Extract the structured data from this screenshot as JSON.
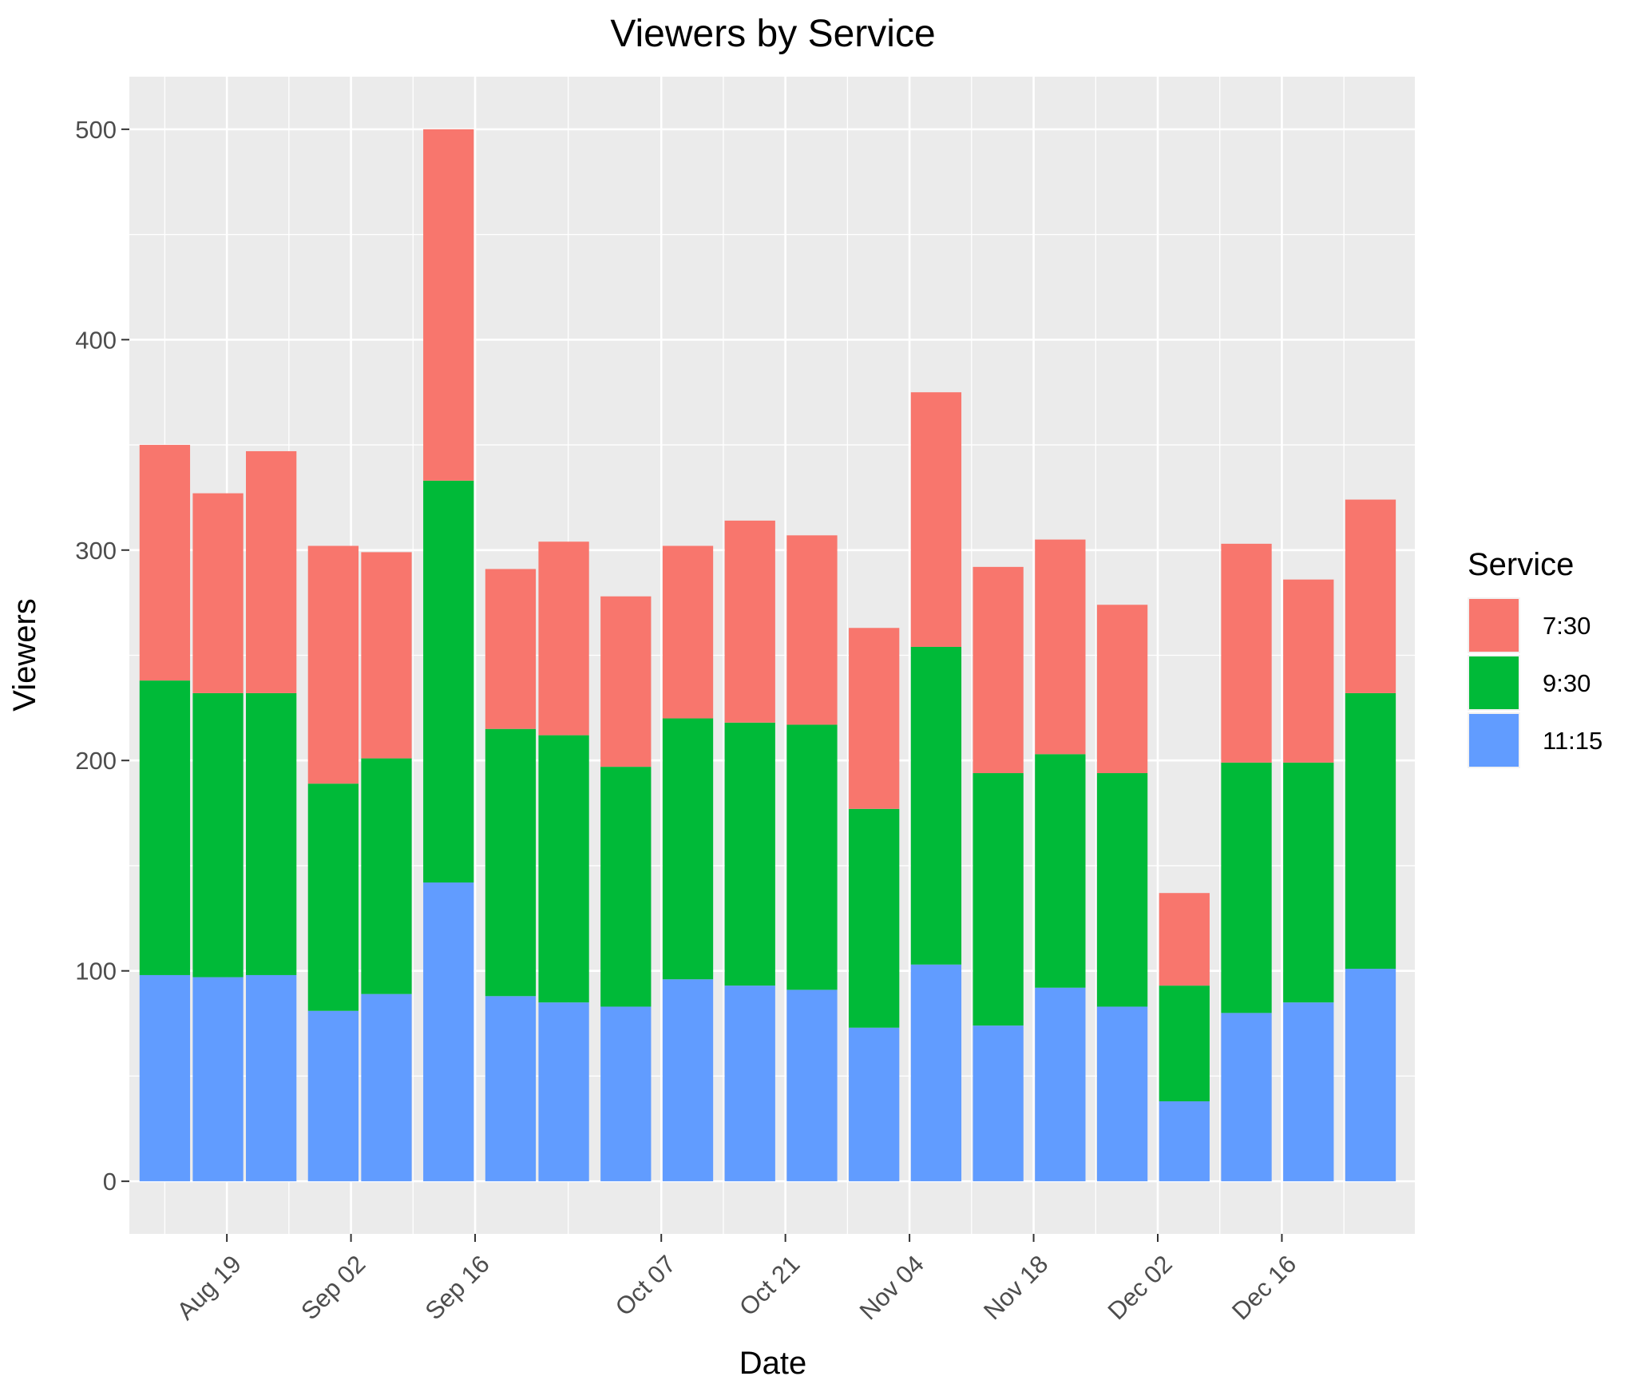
{
  "chart_data": {
    "type": "bar",
    "stacked": true,
    "title": "Viewers by Service",
    "xlabel": "Date",
    "ylabel": "Viewers",
    "ylim": [
      -25,
      525
    ],
    "y_ticks": [
      0,
      100,
      200,
      300,
      400,
      500
    ],
    "y_tick_labels": [
      "0",
      "100",
      "200",
      "300",
      "400",
      "500"
    ],
    "x_ticks": [
      {
        "label": "Aug 19",
        "date": "2018-08-19"
      },
      {
        "label": "Sep 02",
        "date": "2018-09-02"
      },
      {
        "label": "Sep 16",
        "date": "2018-09-16"
      },
      {
        "label": "Oct 07",
        "date": "2018-10-07"
      },
      {
        "label": "Oct 21",
        "date": "2018-10-21"
      },
      {
        "label": "Nov 04",
        "date": "2018-11-04"
      },
      {
        "label": "Nov 18",
        "date": "2018-11-18"
      },
      {
        "label": "Dec 02",
        "date": "2018-12-02"
      },
      {
        "label": "Dec 16",
        "date": "2018-12-16"
      }
    ],
    "x_range": [
      "2018-08-08",
      "2018-12-31"
    ],
    "grid": true,
    "legend": {
      "title": "Service",
      "position": "right"
    },
    "dates": [
      "2018-08-12",
      "2018-08-18",
      "2018-08-24",
      "2018-08-31",
      "2018-09-06",
      "2018-09-13",
      "2018-09-20",
      "2018-09-26",
      "2018-10-03",
      "2018-10-10",
      "2018-10-17",
      "2018-10-24",
      "2018-10-31",
      "2018-11-07",
      "2018-11-14",
      "2018-11-21",
      "2018-11-28",
      "2018-12-05",
      "2018-12-12",
      "2018-12-19",
      "2018-12-26"
    ],
    "series": [
      {
        "name": "7:30",
        "color": "#F8766D",
        "values": [
          112,
          95,
          115,
          113,
          98,
          167,
          76,
          92,
          81,
          82,
          96,
          90,
          86,
          121,
          98,
          102,
          80,
          44,
          104,
          87,
          92
        ]
      },
      {
        "name": "9:30",
        "color": "#00BA38",
        "values": [
          140,
          135,
          134,
          108,
          112,
          191,
          127,
          127,
          114,
          124,
          125,
          126,
          104,
          151,
          120,
          111,
          111,
          55,
          119,
          114,
          131
        ]
      },
      {
        "name": "11:15",
        "color": "#619CFF",
        "values": [
          98,
          97,
          98,
          81,
          89,
          142,
          88,
          85,
          83,
          96,
          93,
          91,
          73,
          103,
          74,
          92,
          83,
          38,
          80,
          85,
          101
        ]
      }
    ]
  }
}
